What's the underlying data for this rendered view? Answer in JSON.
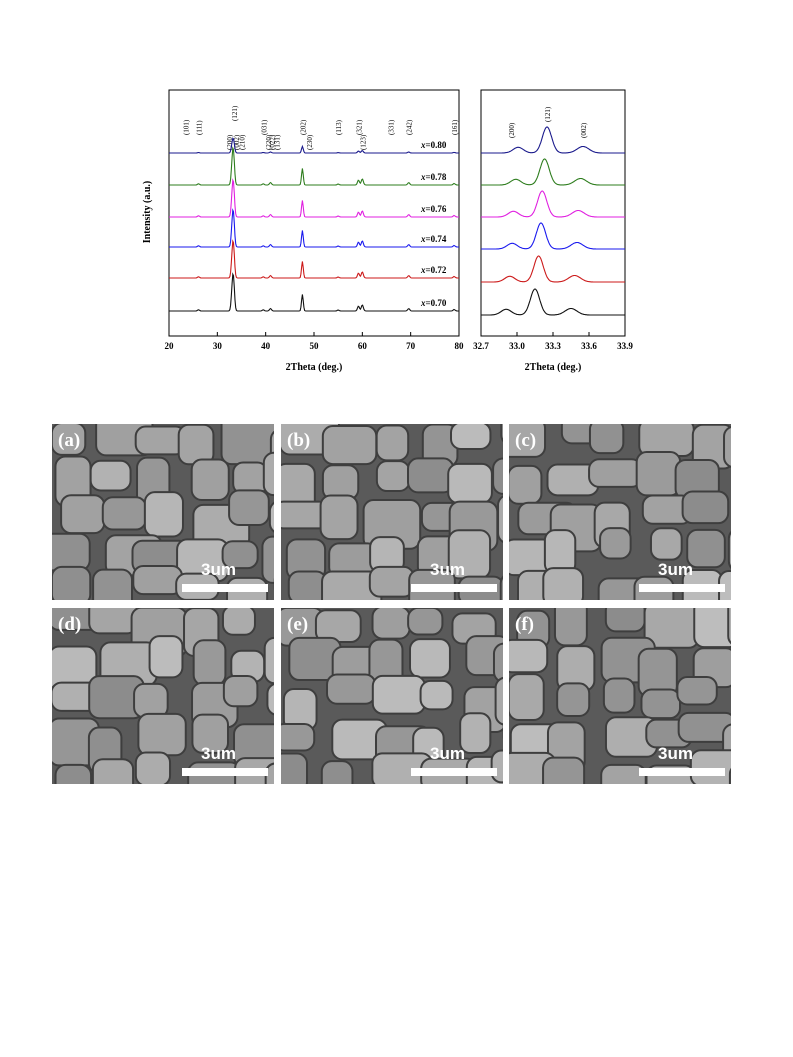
{
  "xrd_main": {
    "type": "line",
    "xlabel": "2Theta (deg.)",
    "ylabel": "Intensity (a.u.)",
    "xlim": [
      20,
      80
    ],
    "x_ticks": [
      "20",
      "30",
      "40",
      "50",
      "60",
      "70",
      "80"
    ],
    "peak_labels": [
      "(101)",
      "(111)",
      "(200)",
      "(121)",
      "(002)",
      "(210)",
      "(031)",
      "(220)",
      "(022)",
      "(131)",
      "(202)",
      "(230)",
      "(113)",
      "(321)",
      "(123)",
      "(331)",
      "(242)",
      "(161)"
    ],
    "series": [
      {
        "name": "x=0.80",
        "prefix": "x",
        "value": "=0.80",
        "color": "#1a1a8c"
      },
      {
        "name": "x=0.78",
        "prefix": "x",
        "value": "=0.78",
        "color": "#2e7d1e"
      },
      {
        "name": "x=0.76",
        "prefix": "x",
        "value": "=0.76",
        "color": "#e020e0"
      },
      {
        "name": "x=0.74",
        "prefix": "x",
        "value": "=0.74",
        "color": "#1a1aee"
      },
      {
        "name": "x=0.72",
        "prefix": "x",
        "value": "=0.72",
        "color": "#cc1a1a"
      },
      {
        "name": "x=0.70",
        "prefix": "x",
        "value": "=0.70",
        "color": "#111111"
      }
    ]
  },
  "chart_data": {
    "type": "line",
    "xlabel": "2Theta (deg.)",
    "xlim": [
      32.7,
      33.9
    ],
    "x_ticks": [
      "32.7",
      "33.0",
      "33.3",
      "33.6",
      "33.9"
    ],
    "peak_labels": [
      "(200)",
      "(121)",
      "(002)"
    ],
    "peak_positions": [
      32.95,
      33.25,
      33.55
    ],
    "series_colors": [
      "#1a1a8c",
      "#2e7d1e",
      "#e020e0",
      "#1a1aee",
      "#cc1a1a",
      "#111111"
    ],
    "peak_centers": [
      33.25,
      33.23,
      33.21,
      33.2,
      33.18,
      33.15
    ]
  },
  "sem": {
    "panels": [
      {
        "label": "(a)",
        "scale": "3um"
      },
      {
        "label": "(b)",
        "scale": "3um"
      },
      {
        "label": "(c)",
        "scale": "3um"
      },
      {
        "label": "(d)",
        "scale": "3um"
      },
      {
        "label": "(e)",
        "scale": "3um"
      },
      {
        "label": "(f)",
        "scale": "3um"
      }
    ]
  }
}
